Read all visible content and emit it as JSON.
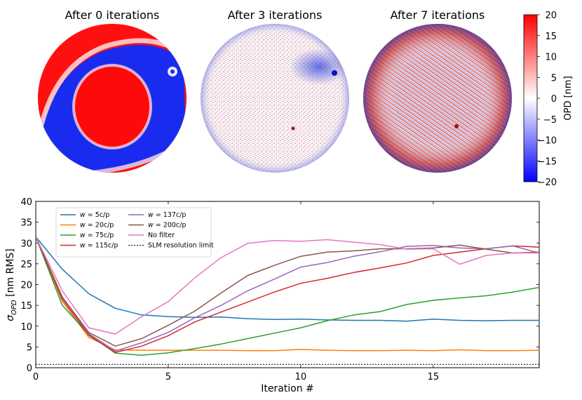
{
  "maps": {
    "titles": [
      "After 0 iterations",
      "After 3 iterations",
      "After 7 iterations"
    ]
  },
  "colorbar": {
    "label": "OPD [nm]",
    "ticks": [
      "20",
      "15",
      "10",
      "5",
      "0",
      "−5",
      "−10",
      "−15",
      "−20"
    ],
    "min": -20,
    "max": 20,
    "colors": {
      "high": "#ff0000",
      "mid": "#ffffff",
      "low": "#0000ff"
    }
  },
  "chart_data": {
    "type": "line",
    "xlabel": "Iteration #",
    "ylabel_main": "σ",
    "ylabel_sub": "OPD",
    "ylabel_rest": " [nm RMS]",
    "xlim": [
      0,
      19
    ],
    "ylim": [
      0,
      40
    ],
    "xticks": [
      0,
      5,
      10,
      15
    ],
    "yticks": [
      0,
      5,
      10,
      15,
      20,
      25,
      30,
      35,
      40
    ],
    "legend_position": "top-left",
    "x": [
      0,
      1,
      2,
      3,
      4,
      5,
      6,
      7,
      8,
      9,
      10,
      11,
      12,
      13,
      14,
      15,
      16,
      17,
      18,
      19
    ],
    "series": [
      {
        "name": "w = 5c/p",
        "prefix": "w",
        "suffix": " = 5c/p",
        "color": "#1f77b4",
        "values": [
          31.5,
          23.7,
          17.8,
          14.3,
          12.7,
          12.3,
          12.1,
          12.2,
          11.8,
          11.6,
          11.7,
          11.5,
          11.4,
          11.4,
          11.2,
          11.7,
          11.4,
          11.3,
          11.4,
          11.4
        ]
      },
      {
        "name": "w = 20c/p",
        "prefix": "w",
        "suffix": " = 20c/p",
        "color": "#ff7f0e",
        "values": [
          31.5,
          16.0,
          7.3,
          4.3,
          4.2,
          4.2,
          4.2,
          4.2,
          4.1,
          4.1,
          4.4,
          4.2,
          4.1,
          4.1,
          4.2,
          4.1,
          4.3,
          4.1,
          4.1,
          4.2
        ]
      },
      {
        "name": "w = 75c/p",
        "prefix": "w",
        "suffix": " = 75c/p",
        "color": "#2ca02c",
        "values": [
          31.5,
          15.0,
          8.0,
          3.5,
          3.0,
          3.6,
          4.6,
          5.7,
          7.0,
          8.3,
          9.6,
          11.3,
          12.7,
          13.5,
          15.2,
          16.2,
          16.8,
          17.3,
          18.2,
          19.3
        ]
      },
      {
        "name": "w = 115c/p",
        "prefix": "w",
        "suffix": " = 115c/p",
        "color": "#d62728",
        "values": [
          31.5,
          16.5,
          7.8,
          3.7,
          5.2,
          7.7,
          11.0,
          13.4,
          15.8,
          18.2,
          20.3,
          21.5,
          22.9,
          24.0,
          25.2,
          27.0,
          27.8,
          28.6,
          29.3,
          29.0
        ]
      },
      {
        "name": "w = 137c/p",
        "prefix": "w",
        "suffix": " = 137c/p",
        "color": "#9467bd",
        "values": [
          31.5,
          17.0,
          8.2,
          4.0,
          6.0,
          8.5,
          12.0,
          15.0,
          18.5,
          21.3,
          24.2,
          25.3,
          26.8,
          27.9,
          29.2,
          29.4,
          28.8,
          28.6,
          29.3,
          27.6
        ]
      },
      {
        "name": "w = 200c/p",
        "prefix": "w",
        "suffix": " = 200c/p",
        "color": "#8c564b",
        "values": [
          31.5,
          17.0,
          8.5,
          5.2,
          7.0,
          10.2,
          13.6,
          18.0,
          22.2,
          24.6,
          26.8,
          27.8,
          28.1,
          28.6,
          28.6,
          28.8,
          29.5,
          28.5,
          27.6,
          27.8
        ]
      },
      {
        "name": "No filter",
        "prefix": "",
        "suffix": "No filter",
        "color": "#e377c2",
        "values": [
          31.5,
          18.5,
          9.6,
          8.1,
          12.3,
          15.9,
          21.6,
          26.5,
          29.9,
          30.6,
          30.4,
          30.8,
          30.2,
          29.6,
          28.5,
          28.6,
          24.9,
          27.0,
          27.6,
          27.6
        ]
      }
    ],
    "reference": {
      "name": "SLM resolution limit",
      "value": 0.8,
      "color": "#000000"
    }
  }
}
